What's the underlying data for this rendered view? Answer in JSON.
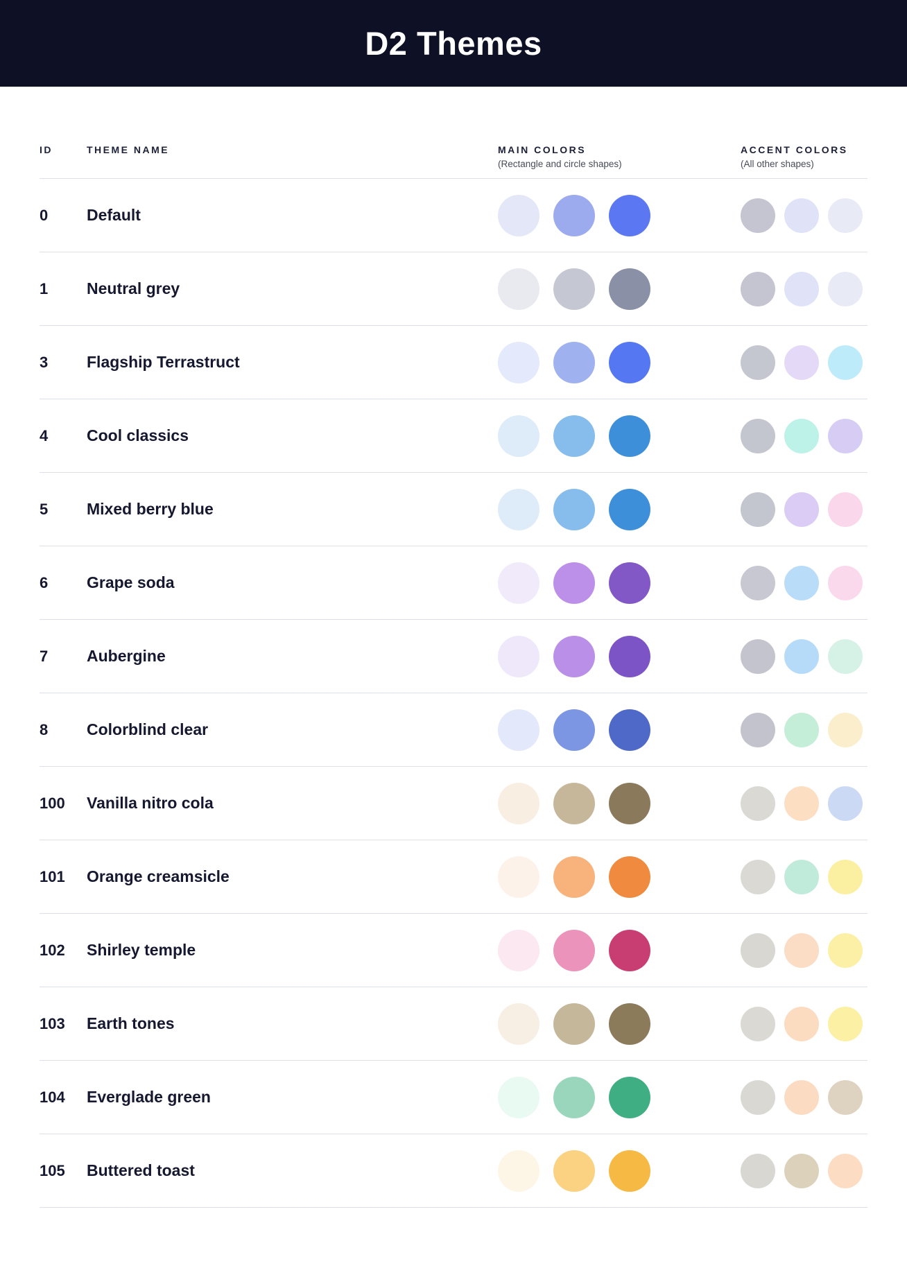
{
  "title": "D2 Themes",
  "colors": {
    "banner_background": "#0e1126",
    "divider": "#dcdeea",
    "title_text": "#ffffff",
    "header_text": "#1c2038",
    "row_text": "#15182f"
  },
  "columns": {
    "id": {
      "label": "ID",
      "sub": ""
    },
    "theme_name": {
      "label": "THEME NAME",
      "sub": ""
    },
    "main_colors": {
      "label": "MAIN COLORS",
      "sub": "(Rectangle and circle shapes)"
    },
    "accent_colors": {
      "label": "ACCENT COLORS",
      "sub": "(All other shapes)"
    }
  },
  "rows": [
    {
      "id": "0",
      "name": "Default",
      "main_colors": [
        "#e4e7f8",
        "#9cabee",
        "#5b77f1"
      ],
      "accent_colors": [
        "#c4c5d0",
        "#e0e3f7",
        "#e8eaf5"
      ]
    },
    {
      "id": "1",
      "name": "Neutral grey",
      "main_colors": [
        "#e8eaf0",
        "#c5c8d3",
        "#8a90a5"
      ],
      "accent_colors": [
        "#c4c5d0",
        "#e0e3f7",
        "#e8eaf5"
      ]
    },
    {
      "id": "3",
      "name": "Flagship Terrastruct",
      "main_colors": [
        "#e4eafb",
        "#a0b1f0",
        "#5578f2"
      ],
      "accent_colors": [
        "#c4c6d0",
        "#e4daf8",
        "#beebf9"
      ]
    },
    {
      "id": "4",
      "name": "Cool classics",
      "main_colors": [
        "#deecf9",
        "#86bdec",
        "#3e8fd9"
      ],
      "accent_colors": [
        "#c3c5cf",
        "#bcf2e7",
        "#d7cdf4"
      ]
    },
    {
      "id": "5",
      "name": "Mixed berry blue",
      "main_colors": [
        "#deecf9",
        "#86bdec",
        "#3e8fd9"
      ],
      "accent_colors": [
        "#c3c5cf",
        "#daccf4",
        "#fad7ea"
      ]
    },
    {
      "id": "6",
      "name": "Grape soda",
      "main_colors": [
        "#f1eafb",
        "#bc90e9",
        "#8158c6"
      ],
      "accent_colors": [
        "#c7c8d2",
        "#b9dcf9",
        "#fbd9ed"
      ]
    },
    {
      "id": "7",
      "name": "Aubergine",
      "main_colors": [
        "#efe8fb",
        "#b98fe8",
        "#7d54c6"
      ],
      "accent_colors": [
        "#c3c4ce",
        "#b6dbf8",
        "#d6f2e6"
      ]
    },
    {
      "id": "8",
      "name": "Colorblind clear",
      "main_colors": [
        "#e3e8fa",
        "#7c96e4",
        "#4e69c8"
      ],
      "accent_colors": [
        "#c2c3cd",
        "#c5eed9",
        "#faeecc"
      ]
    },
    {
      "id": "100",
      "name": "Vanilla nitro cola",
      "main_colors": [
        "#f8eee2",
        "#c6b79b",
        "#8b795b"
      ],
      "accent_colors": [
        "#dad9d4",
        "#fcdec2",
        "#cbd9f5"
      ]
    },
    {
      "id": "101",
      "name": "Orange creamsicle",
      "main_colors": [
        "#fdf2e9",
        "#f8b27c",
        "#ef8a3e"
      ],
      "accent_colors": [
        "#dad9d4",
        "#c0ebdb",
        "#fbf0a1"
      ]
    },
    {
      "id": "102",
      "name": "Shirley temple",
      "main_colors": [
        "#fbe8f1",
        "#ec93bc",
        "#c93e72"
      ],
      "accent_colors": [
        "#d8d7d2",
        "#fbdcc4",
        "#fbf0a6"
      ]
    },
    {
      "id": "103",
      "name": "Earth tones",
      "main_colors": [
        "#f7efe3",
        "#c5b79a",
        "#8b7b5b"
      ],
      "accent_colors": [
        "#dad9d4",
        "#fcdcc1",
        "#fbf0a3"
      ]
    },
    {
      "id": "104",
      "name": "Everglade green",
      "main_colors": [
        "#e9faf2",
        "#9ad6bc",
        "#3fae83"
      ],
      "accent_colors": [
        "#d9d8d3",
        "#fbdcc3",
        "#ded3c0"
      ]
    },
    {
      "id": "105",
      "name": "Buttered toast",
      "main_colors": [
        "#fdf6e6",
        "#fad281",
        "#f5b944"
      ],
      "accent_colors": [
        "#d8d7d2",
        "#dcd2bc",
        "#fcddc4"
      ]
    }
  ]
}
